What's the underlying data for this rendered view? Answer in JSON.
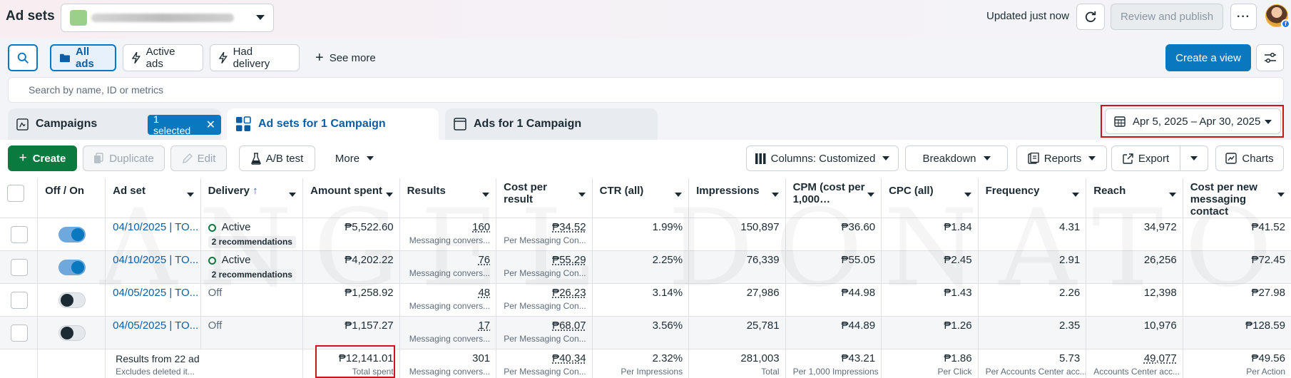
{
  "header": {
    "title": "Ad sets",
    "updated": "Updated just now",
    "review_label": "Review and publish"
  },
  "filters": {
    "all_ads": "All ads",
    "active_ads": "Active ads",
    "had_delivery": "Had delivery",
    "see_more": "See more",
    "create_view": "Create a view"
  },
  "search": {
    "placeholder": "Search by name, ID or metrics"
  },
  "tabs": {
    "campaigns": "Campaigns",
    "selected": "1 selected",
    "adsets": "Ad sets for 1 Campaign",
    "ads": "Ads for 1 Campaign"
  },
  "date_range": "Apr 5, 2025 – Apr 30, 2025",
  "toolbar": {
    "create": "Create",
    "duplicate": "Duplicate",
    "edit": "Edit",
    "ab_test": "A/B test",
    "more": "More",
    "columns": "Columns: Customized",
    "breakdown": "Breakdown",
    "reports": "Reports",
    "export": "Export",
    "charts": "Charts"
  },
  "columns": [
    "Off / On",
    "Ad set",
    "Delivery",
    "Amount spent",
    "Results",
    "Cost per result",
    "CTR (all)",
    "Impressions",
    "CPM (cost per 1,000…",
    "CPC (all)",
    "Frequency",
    "Reach",
    "Cost per new messaging contact"
  ],
  "rows": [
    {
      "toggle": "on",
      "name": "04/10/2025 | TO...",
      "delivery": "Active",
      "recs": "2 recommendations",
      "spent": "₱5,522.60",
      "results": "160",
      "results_sub": "Messaging convers...",
      "cpr": "₱34.52",
      "cpr_sub": "Per Messaging Con...",
      "ctr": "1.99%",
      "impr": "150,897",
      "cpm": "₱36.60",
      "cpc": "₱1.84",
      "freq": "4.31",
      "reach": "34,972",
      "cpmc": "₱41.52"
    },
    {
      "toggle": "on",
      "name": "04/10/2025 | TO...",
      "delivery": "Active",
      "recs": "2 recommendations",
      "spent": "₱4,202.22",
      "results": "76",
      "results_sub": "Messaging convers...",
      "cpr": "₱55.29",
      "cpr_sub": "Per Messaging Con...",
      "ctr": "2.25%",
      "impr": "76,339",
      "cpm": "₱55.05",
      "cpc": "₱2.45",
      "freq": "2.91",
      "reach": "26,256",
      "cpmc": "₱72.45"
    },
    {
      "toggle": "off",
      "name": "04/05/2025 | TO...",
      "delivery": "Off",
      "recs": "",
      "spent": "₱1,258.92",
      "results": "48",
      "results_sub": "Messaging convers...",
      "cpr": "₱26.23",
      "cpr_sub": "Per Messaging Con...",
      "ctr": "3.14%",
      "impr": "27,986",
      "cpm": "₱44.98",
      "cpc": "₱1.43",
      "freq": "2.26",
      "reach": "12,398",
      "cpmc": "₱27.98"
    },
    {
      "toggle": "off",
      "name": "04/05/2025 | TO...",
      "delivery": "Off",
      "recs": "",
      "spent": "₱1,157.27",
      "results": "17",
      "results_sub": "Messaging convers...",
      "cpr": "₱68.07",
      "cpr_sub": "Per Messaging Con...",
      "ctr": "3.56%",
      "impr": "25,781",
      "cpm": "₱44.89",
      "cpc": "₱1.26",
      "freq": "2.35",
      "reach": "10,976",
      "cpmc": "₱128.59"
    }
  ],
  "totals": {
    "label": "Results from 22 ad",
    "label_sub": "Excludes deleted it...",
    "spent": "₱12,141.01",
    "spent_sub": "Total spent",
    "results": "301",
    "results_sub": "Messaging convers...",
    "cpr": "₱40.34",
    "cpr_sub": "Per Messaging Con...",
    "ctr": "2.32%",
    "ctr_sub": "Per Impressions",
    "impr": "281,003",
    "impr_sub": "Total",
    "cpm": "₱43.21",
    "cpm_sub": "Per 1,000 Impressions",
    "cpc": "₱1.86",
    "cpc_sub": "Per Click",
    "freq": "5.73",
    "freq_sub": "Per Accounts Center acc...",
    "reach": "49,077",
    "reach_sub": "Accounts Center acc...",
    "cpmc": "₱49.56",
    "cpmc_sub": "Per Action"
  },
  "watermark": "ANGEL DONATO"
}
